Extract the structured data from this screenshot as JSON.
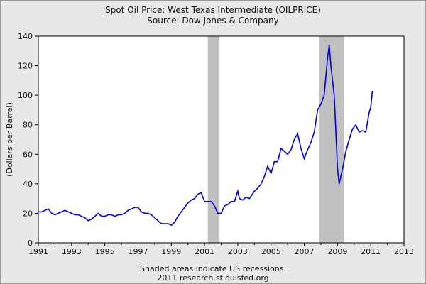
{
  "chart_data": {
    "type": "line",
    "title": "Spot Oil Price: West Texas Intermediate (OILPRICE)",
    "subtitle": "Source: Dow Jones & Company",
    "ylabel": "(Dollars per Barrel)",
    "xlabel": "",
    "xlim": [
      1991,
      2013
    ],
    "ylim": [
      0,
      140
    ],
    "x_ticks": [
      "1991",
      "1993",
      "1995",
      "1997",
      "1999",
      "2001",
      "2003",
      "2005",
      "2007",
      "2009",
      "2011",
      "2013"
    ],
    "y_ticks": [
      "0",
      "20",
      "40",
      "60",
      "80",
      "100",
      "120",
      "140"
    ],
    "grid": false,
    "line_color": "#0000dd",
    "recession_color": "#c0c0c0",
    "recessions": [
      [
        2001.2,
        2001.9
      ],
      [
        2007.9,
        2009.4
      ]
    ],
    "series": [
      {
        "x": [
          1991.0,
          1991.2,
          1991.4,
          1991.6,
          1991.8,
          1992.0,
          1992.2,
          1992.4,
          1992.6,
          1992.8,
          1993.0,
          1993.2,
          1993.4,
          1993.6,
          1993.8,
          1994.0,
          1994.2,
          1994.4,
          1994.6,
          1994.8,
          1995.0,
          1995.2,
          1995.4,
          1995.6,
          1995.8,
          1996.0,
          1996.2,
          1996.4,
          1996.6,
          1996.8,
          1997.0,
          1997.2,
          1997.4,
          1997.6,
          1997.8,
          1998.0,
          1998.2,
          1998.4,
          1998.6,
          1998.8,
          1999.0,
          1999.2,
          1999.4,
          1999.6,
          1999.8,
          2000.0,
          2000.2,
          2000.4,
          2000.6,
          2000.8,
          2001.0,
          2001.2,
          2001.4,
          2001.6,
          2001.8,
          2002.0,
          2002.2,
          2002.4,
          2002.6,
          2002.8,
          2003.0,
          2003.1,
          2003.3,
          2003.5,
          2003.7,
          2004.0,
          2004.2,
          2004.4,
          2004.6,
          2004.8,
          2005.0,
          2005.2,
          2005.4,
          2005.6,
          2005.8,
          2006.0,
          2006.2,
          2006.4,
          2006.6,
          2006.8,
          2007.0,
          2007.2,
          2007.4,
          2007.6,
          2007.8,
          2008.0,
          2008.2,
          2008.4,
          2008.5,
          2008.6,
          2008.8,
          2009.0,
          2009.1,
          2009.3,
          2009.5,
          2009.7,
          2009.9,
          2010.1,
          2010.3,
          2010.5,
          2010.7,
          2010.9,
          2011.0,
          2011.1
        ],
        "y": [
          21,
          21,
          22,
          23,
          20,
          19,
          20,
          21,
          22,
          21,
          20,
          19,
          19,
          18,
          17,
          15,
          16,
          18,
          20,
          18,
          18,
          19,
          19,
          18,
          19,
          19,
          20,
          22,
          23,
          24,
          24,
          21,
          20,
          20,
          19,
          17,
          15,
          13,
          13,
          13,
          12,
          14,
          18,
          21,
          24,
          27,
          29,
          30,
          33,
          34,
          28,
          28,
          28,
          25,
          20,
          20,
          25,
          26,
          28,
          28,
          35,
          30,
          29,
          31,
          30,
          35,
          37,
          40,
          45,
          52,
          47,
          55,
          55,
          64,
          62,
          60,
          63,
          70,
          74,
          64,
          57,
          63,
          68,
          75,
          90,
          94,
          100,
          125,
          134,
          120,
          100,
          50,
          40,
          50,
          62,
          70,
          77,
          80,
          75,
          76,
          75,
          88,
          92,
          103
        ]
      }
    ],
    "footer_note": "Shaded areas indicate US recessions.",
    "footer_credit": "2011 research.stlouisfed.org"
  }
}
